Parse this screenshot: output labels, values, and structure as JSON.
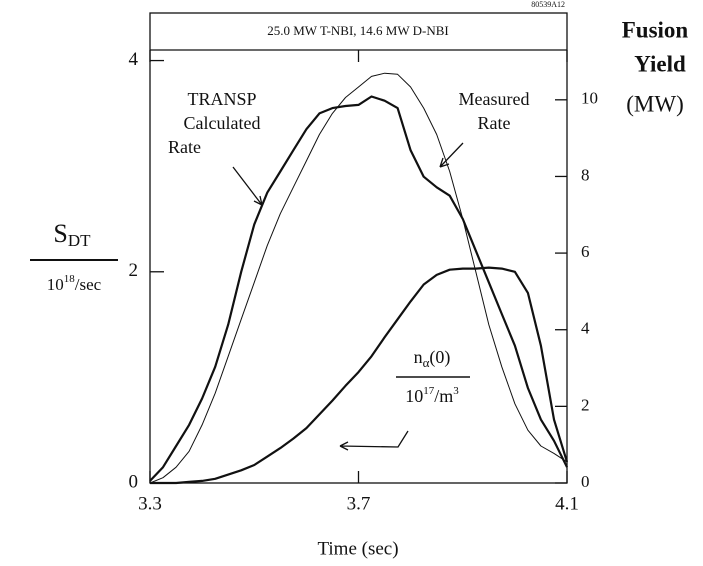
{
  "chart_data": {
    "type": "line",
    "header": "25.0 MW T-NBI, 14.6 MW D-NBI",
    "figure_id": "80539A12",
    "xlabel": "Time (sec)",
    "ylabel": {
      "main": "S",
      "sub": "DT"
    },
    "yunit": {
      "base": "10",
      "sup": "18",
      "rest": "/sec"
    },
    "y2label": [
      "Fusion",
      "Yield",
      "(MW)"
    ],
    "annotations": {
      "transp": [
        "TRANSP",
        "Calculated",
        "Rate"
      ],
      "measured": [
        "Measured",
        "Rate"
      ],
      "nalpha": {
        "main": "n",
        "sub": "α",
        "rest": "(0)"
      },
      "nalpha_unit": {
        "base": "10",
        "sup": "17",
        "rest": "/m",
        "sup2": "3"
      }
    },
    "x": [
      3.3,
      3.325,
      3.35,
      3.375,
      3.4,
      3.425,
      3.45,
      3.475,
      3.5,
      3.525,
      3.55,
      3.575,
      3.6,
      3.625,
      3.65,
      3.675,
      3.7,
      3.725,
      3.75,
      3.775,
      3.8,
      3.825,
      3.85,
      3.875,
      3.9,
      3.925,
      3.95,
      3.975,
      4.0,
      4.025,
      4.05,
      4.075,
      4.1
    ],
    "series": [
      {
        "color": "#111111",
        "width": 2.2,
        "values": [
          0.02,
          0.15,
          0.35,
          0.55,
          0.8,
          1.1,
          1.5,
          2.0,
          2.45,
          2.75,
          2.95,
          3.15,
          3.35,
          3.5,
          3.55,
          3.57,
          3.58,
          3.66,
          3.62,
          3.55,
          3.15,
          2.9,
          2.8,
          2.72,
          2.5,
          2.2,
          1.9,
          1.6,
          1.3,
          0.9,
          0.6,
          0.4,
          0.15
        ]
      },
      {
        "color": "#111111",
        "width": 1,
        "values": [
          0,
          0.05,
          0.15,
          0.3,
          0.55,
          0.85,
          1.2,
          1.55,
          1.9,
          2.25,
          2.55,
          2.8,
          3.05,
          3.3,
          3.5,
          3.65,
          3.75,
          3.85,
          3.88,
          3.87,
          3.75,
          3.55,
          3.3,
          2.95,
          2.5,
          2.0,
          1.5,
          1.1,
          0.75,
          0.5,
          0.35,
          0.28,
          0.2
        ]
      },
      {
        "color": "#111111",
        "width": 2.2,
        "values": [
          0,
          0,
          0,
          0.01,
          0.02,
          0.04,
          0.08,
          0.12,
          0.17,
          0.25,
          0.33,
          0.42,
          0.52,
          0.65,
          0.78,
          0.92,
          1.05,
          1.2,
          1.38,
          1.55,
          1.72,
          1.88,
          1.97,
          2.02,
          2.03,
          2.03,
          2.04,
          2.03,
          2.0,
          1.8,
          1.3,
          0.6,
          0.2
        ]
      }
    ],
    "xlim": [
      3.3,
      4.1
    ],
    "xticks": [
      3.3,
      3.7,
      4.1
    ],
    "ylim": [
      0,
      4.1
    ],
    "yticks": [
      0,
      2,
      4
    ],
    "y2lim": [
      0,
      11.3
    ],
    "y2ticks": [
      0,
      2,
      4,
      6,
      8,
      10
    ]
  }
}
